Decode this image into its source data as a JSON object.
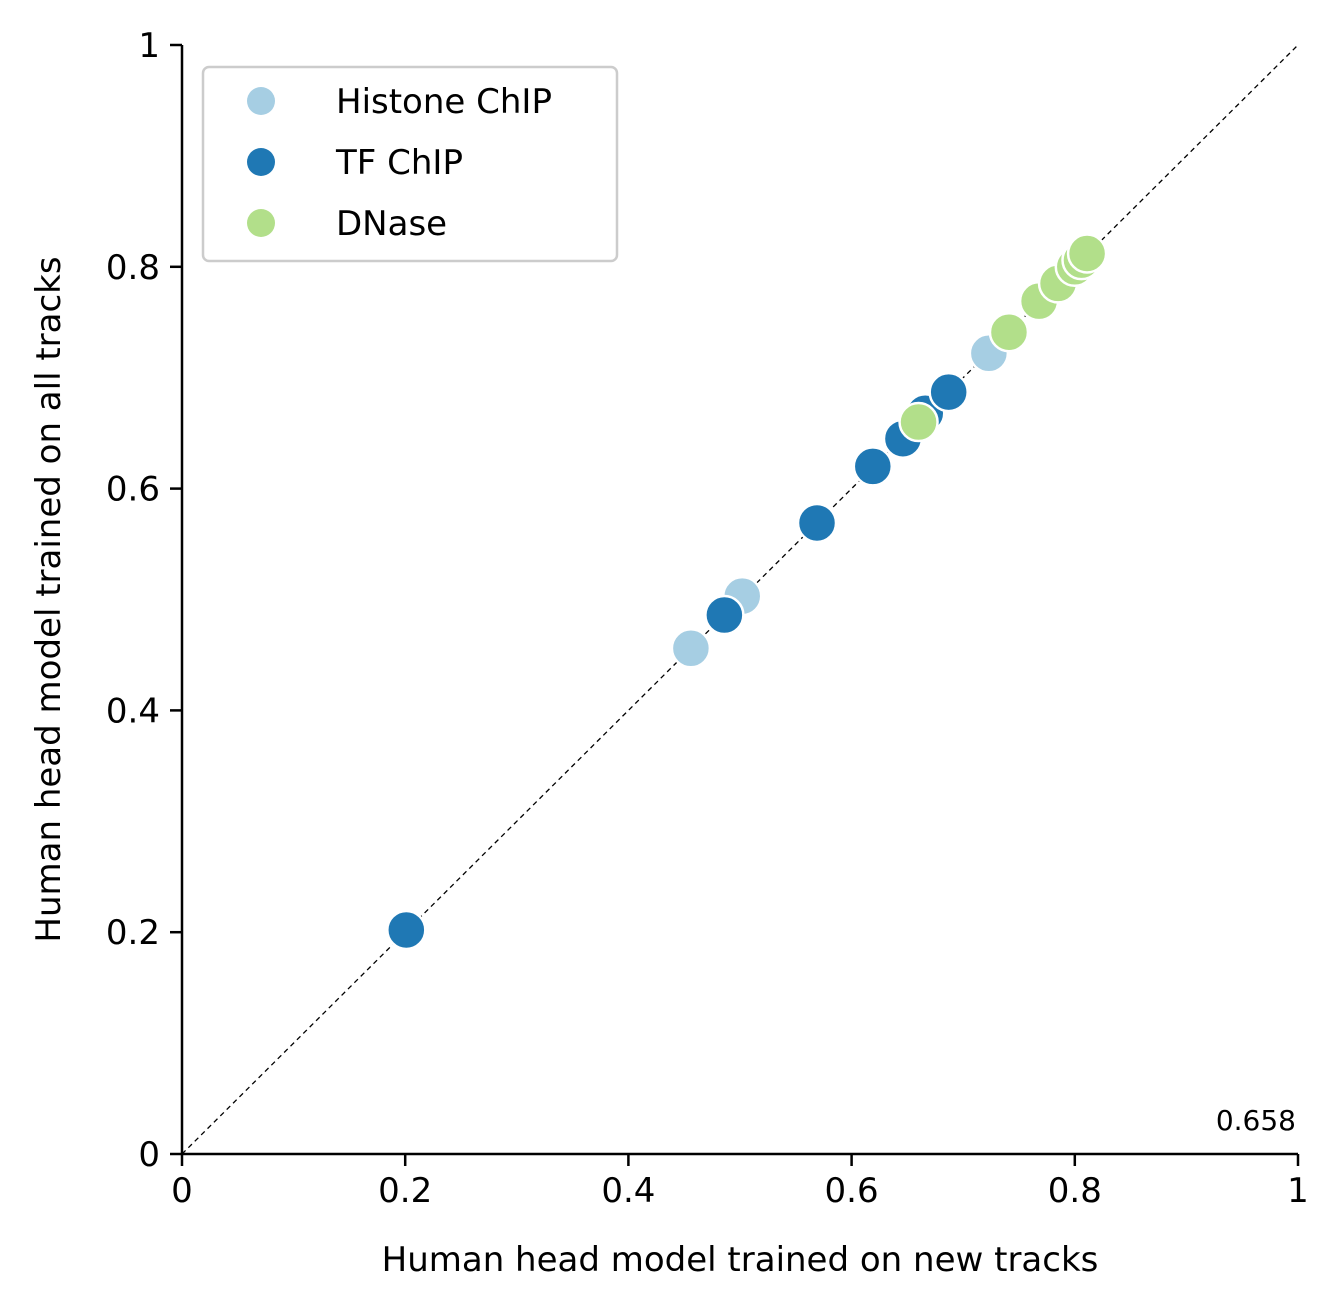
{
  "chart_data": {
    "type": "scatter",
    "title": "",
    "xlabel": "Human head model trained on new tracks",
    "ylabel": "Human head model trained on all tracks",
    "xlim": [
      0,
      1
    ],
    "ylim": [
      0,
      1
    ],
    "grid": false,
    "legend_position": "top-left",
    "x_ticks": [
      "0",
      "0.2",
      "0.4",
      "0.6",
      "0.8",
      "1"
    ],
    "y_ticks": [
      "0",
      "0.2",
      "0.4",
      "0.6",
      "0.8",
      "1"
    ],
    "reference_line": "y = x (dashed)",
    "annotation": "0.658",
    "series": [
      {
        "name": "Histone ChIP",
        "color": "#a6cee3",
        "points": [
          [
            0.456,
            0.456
          ],
          [
            0.502,
            0.503
          ],
          [
            0.723,
            0.722
          ]
        ]
      },
      {
        "name": "TF ChIP",
        "color": "#1f78b4",
        "points": [
          [
            0.201,
            0.202
          ],
          [
            0.486,
            0.486
          ],
          [
            0.569,
            0.569
          ],
          [
            0.619,
            0.62
          ],
          [
            0.646,
            0.645
          ],
          [
            0.666,
            0.668
          ],
          [
            0.687,
            0.687
          ]
        ]
      },
      {
        "name": "DNase",
        "color": "#b2df8a",
        "points": [
          [
            0.66,
            0.66
          ],
          [
            0.741,
            0.741
          ],
          [
            0.768,
            0.769
          ],
          [
            0.785,
            0.785
          ],
          [
            0.8,
            0.8
          ],
          [
            0.806,
            0.806
          ],
          [
            0.811,
            0.812
          ]
        ]
      }
    ]
  }
}
